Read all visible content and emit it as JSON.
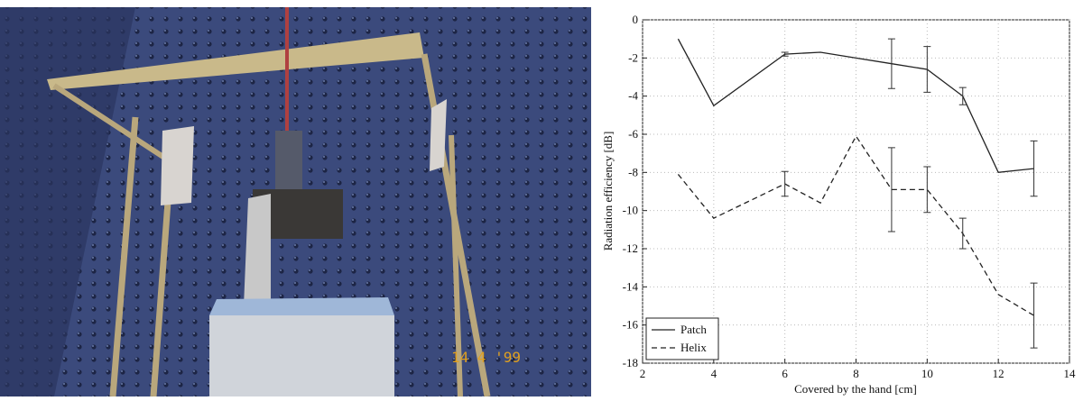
{
  "photo": {
    "stamp": "14 4 '99"
  },
  "chart_data": {
    "type": "line",
    "x_label": "Covered by the hand [cm]",
    "y_label": "Radiation efficiency [dB]",
    "x": [
      3,
      4,
      6,
      7,
      8,
      9,
      10,
      11,
      12,
      13
    ],
    "series": [
      {
        "name": "Patch",
        "color": "#222222",
        "dash": false,
        "values": [
          -1.0,
          -4.5,
          -1.8,
          -1.7,
          -2.0,
          -2.3,
          -2.6,
          -4.0,
          -8.0,
          -7.8
        ],
        "errors": [
          null,
          null,
          0.1,
          null,
          null,
          1.3,
          1.2,
          0.45,
          null,
          1.45
        ]
      },
      {
        "name": "Helix",
        "color": "#222222",
        "dash": true,
        "values": [
          -8.1,
          -10.4,
          -8.6,
          -9.6,
          -6.1,
          -8.9,
          -8.9,
          -11.2,
          -14.4,
          -15.5
        ],
        "errors": [
          null,
          null,
          0.65,
          null,
          null,
          2.2,
          1.2,
          0.8,
          null,
          1.7
        ]
      }
    ],
    "xlim": [
      2,
      14
    ],
    "xticks": [
      2,
      4,
      6,
      8,
      10,
      12,
      14
    ],
    "ylim": [
      -18,
      0
    ],
    "yticks": [
      -18,
      -16,
      -14,
      -12,
      -10,
      -8,
      -6,
      -4,
      -2,
      0
    ],
    "grid": true,
    "legend": "lower left"
  }
}
